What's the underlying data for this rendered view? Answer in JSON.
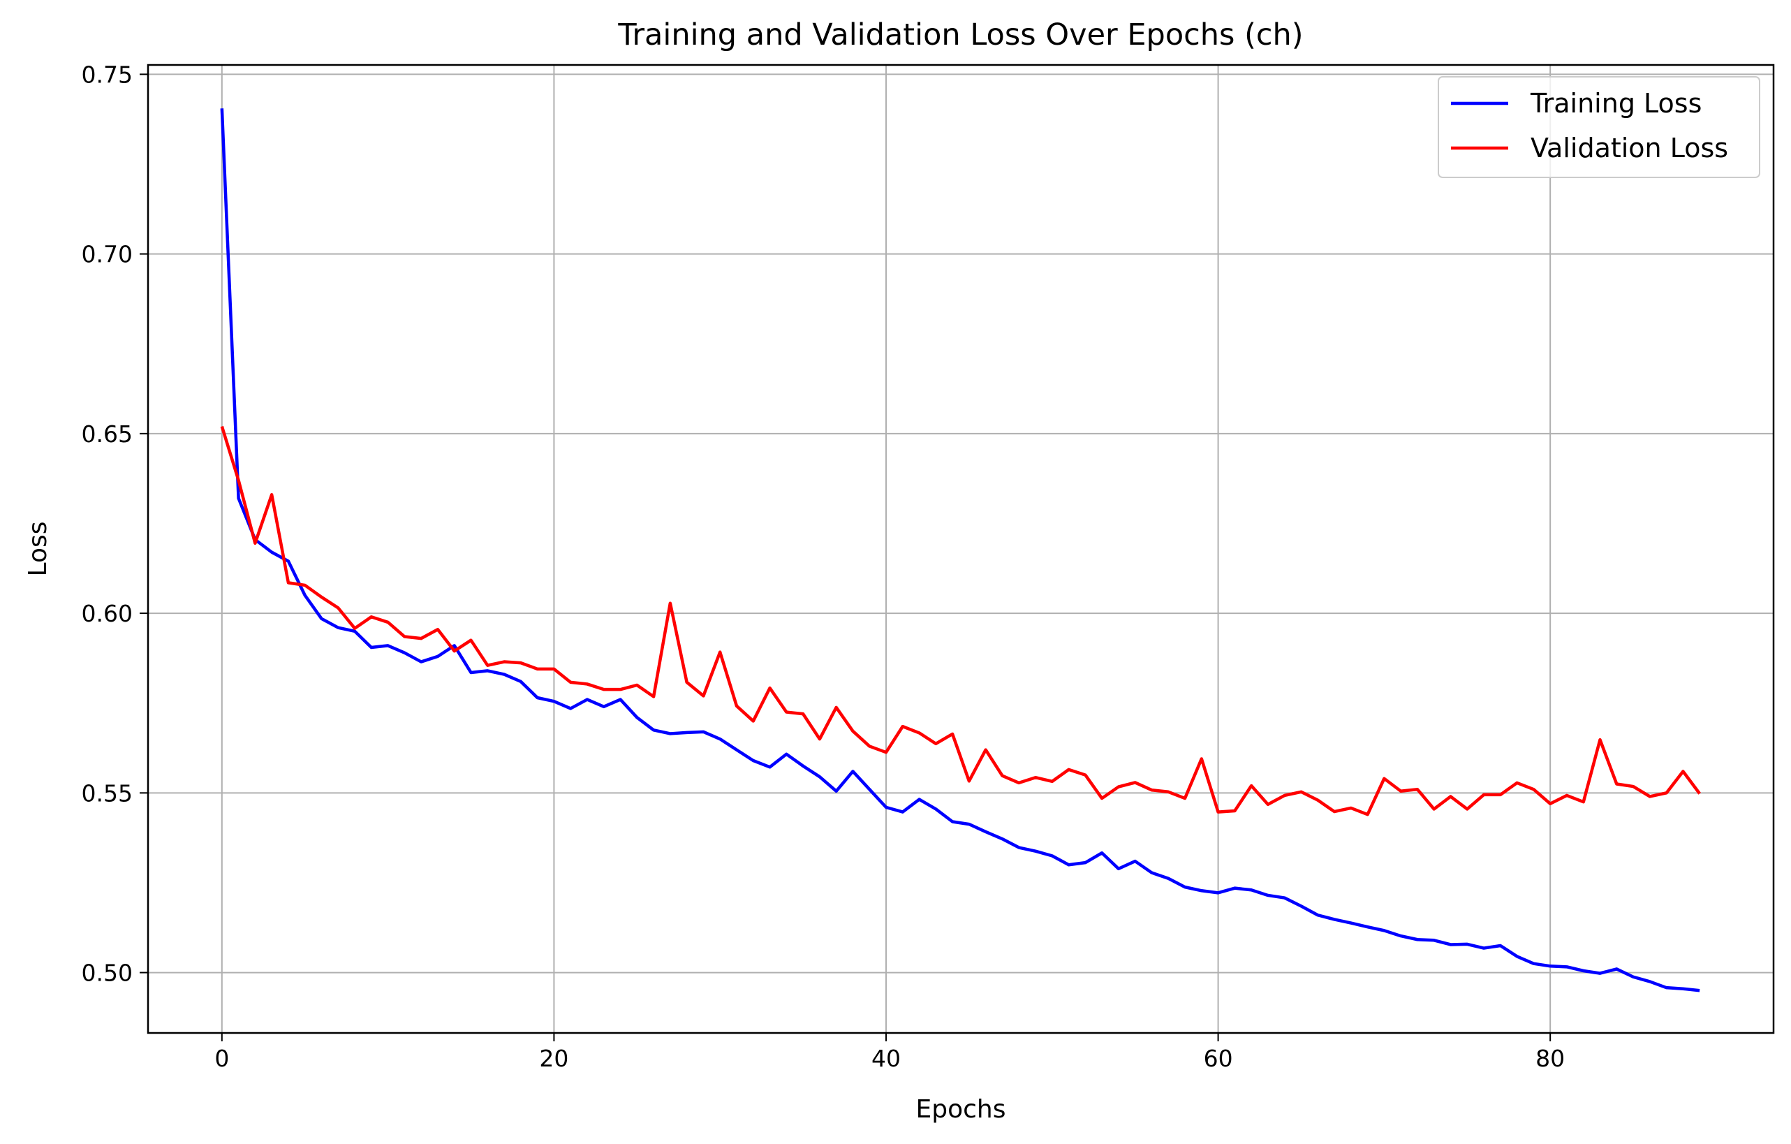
{
  "chart_data": {
    "type": "line",
    "title": "Training and Validation Loss Over Epochs (ch)",
    "xlabel": "Epochs",
    "ylabel": "Loss",
    "xlim": [
      -4.45,
      93.45
    ],
    "ylim": [
      0.4832,
      0.7526
    ],
    "xticks": [
      0,
      20,
      40,
      60,
      80
    ],
    "yticks": [
      0.5,
      0.55,
      0.6,
      0.65,
      0.7,
      0.75
    ],
    "xtick_labels": [
      "0",
      "20",
      "40",
      "60",
      "80"
    ],
    "ytick_labels": [
      "0.50",
      "0.55",
      "0.60",
      "0.65",
      "0.70",
      "0.75"
    ],
    "grid": true,
    "legend_position": "top-right",
    "series": [
      {
        "name": "Training Loss",
        "color": "#0000ff",
        "values": [
          0.7405,
          0.632,
          0.6205,
          0.617,
          0.6145,
          0.605,
          0.5985,
          0.596,
          0.595,
          0.5905,
          0.591,
          0.589,
          0.5865,
          0.588,
          0.591,
          0.5835,
          0.584,
          0.583,
          0.581,
          0.5765,
          0.5755,
          0.5735,
          0.576,
          0.574,
          0.576,
          0.571,
          0.5675,
          0.5665,
          0.5668,
          0.567,
          0.565,
          0.562,
          0.559,
          0.5572,
          0.5608,
          0.5575,
          0.5545,
          0.5505,
          0.556,
          0.551,
          0.546,
          0.5447,
          0.5482,
          0.5455,
          0.542,
          0.5413,
          0.5392,
          0.5372,
          0.5348,
          0.5338,
          0.5325,
          0.53,
          0.5306,
          0.5333,
          0.5289,
          0.531,
          0.5278,
          0.5262,
          0.5238,
          0.5228,
          0.5222,
          0.5235,
          0.523,
          0.5215,
          0.5208,
          0.5185,
          0.516,
          0.5148,
          0.5138,
          0.5127,
          0.5117,
          0.5102,
          0.5092,
          0.509,
          0.5078,
          0.5079,
          0.5068,
          0.5075,
          0.5045,
          0.5025,
          0.5018,
          0.5016,
          0.5005,
          0.4998,
          0.501,
          0.4988,
          0.4975,
          0.4958,
          0.4955,
          0.495
        ]
      },
      {
        "name": "Validation Loss",
        "color": "#ff0000",
        "values": [
          0.652,
          0.637,
          0.6195,
          0.633,
          0.6085,
          0.6078,
          0.6045,
          0.6015,
          0.5958,
          0.599,
          0.5975,
          0.5935,
          0.593,
          0.5955,
          0.5895,
          0.5925,
          0.5855,
          0.5865,
          0.5862,
          0.5845,
          0.5845,
          0.5808,
          0.5803,
          0.5788,
          0.5788,
          0.58,
          0.5768,
          0.6028,
          0.5808,
          0.577,
          0.5892,
          0.5742,
          0.57,
          0.5792,
          0.5725,
          0.572,
          0.565,
          0.5738,
          0.5672,
          0.563,
          0.5613,
          0.5685,
          0.5667,
          0.5637,
          0.5664,
          0.5533,
          0.562,
          0.5548,
          0.5528,
          0.5543,
          0.5532,
          0.5565,
          0.555,
          0.5485,
          0.5517,
          0.5529,
          0.5508,
          0.5503,
          0.5485,
          0.5595,
          0.5447,
          0.545,
          0.552,
          0.5468,
          0.5493,
          0.5503,
          0.548,
          0.5448,
          0.5458,
          0.544,
          0.554,
          0.5505,
          0.551,
          0.5455,
          0.549,
          0.5455,
          0.5495,
          0.5495,
          0.5528,
          0.551,
          0.547,
          0.5493,
          0.5475,
          0.5648,
          0.5525,
          0.5518,
          0.549,
          0.55,
          0.556,
          0.5498
        ]
      }
    ]
  }
}
